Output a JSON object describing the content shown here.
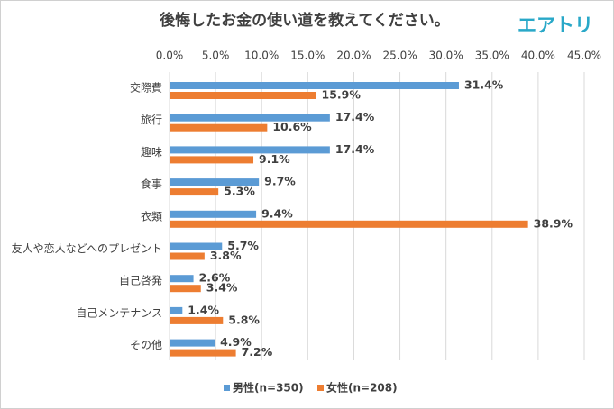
{
  "brand": "エアトリ",
  "chart_data": {
    "type": "hbar",
    "title": "後悔したお金の使い道を教えてください。",
    "categories": [
      "交際費",
      "旅行",
      "趣味",
      "食事",
      "衣類",
      "友人や恋人などへのプレゼント",
      "自己啓発",
      "自己メンテナンス",
      "その他"
    ],
    "series": [
      {
        "name": "男性(n=350)",
        "color": "#5b9bd5",
        "values": [
          31.4,
          17.4,
          17.4,
          9.7,
          9.4,
          5.7,
          2.6,
          1.4,
          4.9
        ],
        "value_labels": [
          "31.4%",
          "17.4%",
          "17.4%",
          "9.7%",
          "9.4%",
          "5.7%",
          "2.6%",
          "1.4%",
          "4.9%"
        ]
      },
      {
        "name": "女性(n=208)",
        "color": "#ed7d31",
        "values": [
          15.9,
          10.6,
          9.1,
          5.3,
          38.9,
          3.8,
          3.4,
          5.8,
          7.2
        ],
        "value_labels": [
          "15.9%",
          "10.6%",
          "9.1%",
          "5.3%",
          "38.9%",
          "3.8%",
          "3.4%",
          "5.8%",
          "7.2%"
        ]
      }
    ],
    "xlim": [
      0,
      45
    ],
    "xticks": [
      {
        "value": 0,
        "label": "0.0%"
      },
      {
        "value": 5,
        "label": "5.0%"
      },
      {
        "value": 10,
        "label": "10.0%"
      },
      {
        "value": 15,
        "label": "15.0%"
      },
      {
        "value": 20,
        "label": "20.0%"
      },
      {
        "value": 25,
        "label": "25.0%"
      },
      {
        "value": 30,
        "label": "30.0%"
      },
      {
        "value": 35,
        "label": "35.0%"
      },
      {
        "value": 40,
        "label": "40.0%"
      },
      {
        "value": 45,
        "label": "45.0%"
      }
    ],
    "grid": true,
    "legend": "bottom"
  }
}
